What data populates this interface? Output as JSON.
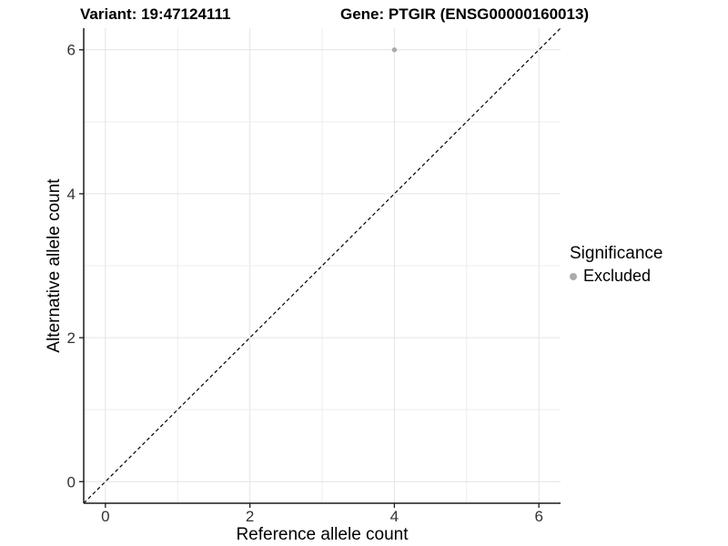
{
  "chart_data": {
    "type": "scatter",
    "title_variant": "Variant: 19:47124111",
    "title_gene": "Gene: PTGIR (ENSG00000160013)",
    "xlabel": "Reference allele count",
    "ylabel": "Alternative allele count",
    "xlim": [
      -0.3,
      6.3
    ],
    "ylim": [
      -0.3,
      6.3
    ],
    "xticks": [
      0,
      2,
      4,
      6
    ],
    "yticks": [
      0,
      2,
      4,
      6
    ],
    "grid": {
      "major": true,
      "minor": true
    },
    "points": [
      {
        "x": 4,
        "y": 6,
        "significance": "Excluded"
      }
    ],
    "identity_line": {
      "slope": 1,
      "intercept": 0,
      "style": "dashed"
    },
    "legend": {
      "title": "Significance",
      "position": "right",
      "items": [
        {
          "label": "Excluded",
          "color": "#ababab"
        }
      ]
    }
  },
  "colors": {
    "background": "#ffffff",
    "grid_major": "#e4e4e4",
    "grid_minor": "#ededed",
    "axis_line": "#1a1a1a",
    "tick_mark": "#1a1a1a",
    "tick_label": "#333333",
    "text": "#000000",
    "identity_line": "#000000",
    "point_excluded": "#ababab"
  }
}
